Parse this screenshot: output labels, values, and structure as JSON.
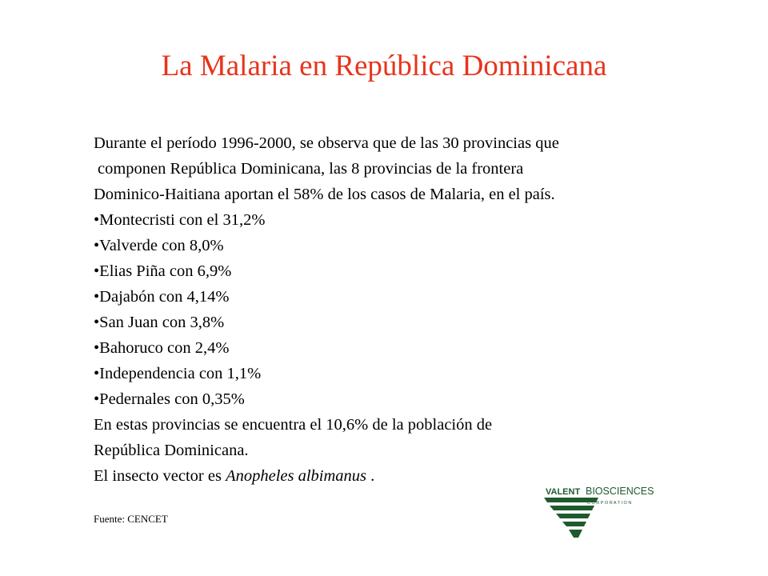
{
  "slide": {
    "title": "La Malaria en República Dominicana",
    "intro_lines": [
      "Durante el período 1996-2000, se observa que de las 30 provincias que",
      "componen República Dominicana, las 8 provincias  de la frontera",
      "Dominico-Haitiana aportan el 58% de los casos de Malaria, en el país."
    ],
    "provinces": [
      "•Montecristi con el 31,2%",
      "•Valverde con 8,0%",
      "•Elias Piña con 6,9%",
      "•Dajabón con 4,14%",
      "•San Juan con 3,8%",
      "•Bahoruco con 2,4%",
      "•Independencia con 1,1%",
      "•Pedernales con 0,35%"
    ],
    "closing_lines": [
      "En estas provincias se encuentra el 10,6% de la población de",
      "República Dominicana."
    ],
    "vector": {
      "prefix": "El insecto vector es ",
      "species": "Anopheles albimanus",
      "suffix": " ."
    },
    "source": "Fuente: CENCET"
  },
  "logo": {
    "brand_left": "VALENT",
    "brand_right": "BIOSCIENCES",
    "subtitle": "C O R P O R A T I O N",
    "color": "#1f5a2e"
  }
}
